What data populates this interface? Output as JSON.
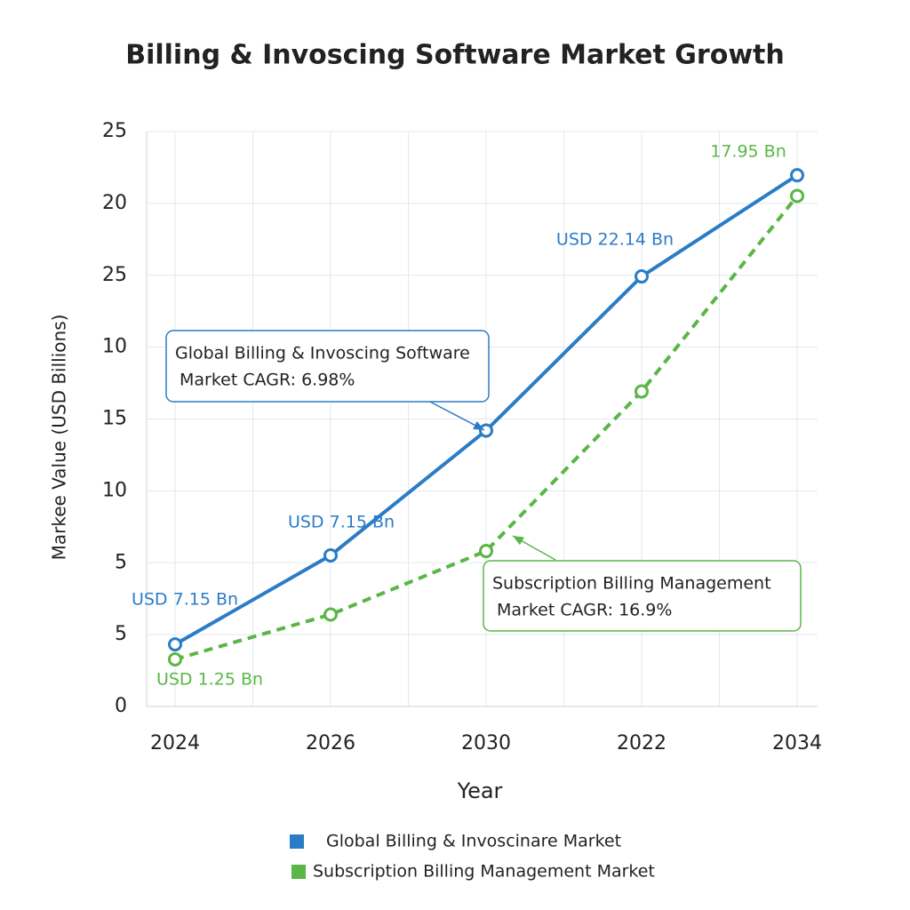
{
  "chart_data": {
    "type": "line",
    "title": "Billing & Invoscing Software Market Growth",
    "x_label": "Year",
    "y_label": "Markee Value (USD Billions)",
    "categories": [
      "2024",
      "2026",
      "2030",
      "2022",
      "2034"
    ],
    "series": [
      {
        "name": "Global Billing & Invoscinare Market",
        "color": "#2b7cc6",
        "dashed": false,
        "values": [
          2.7,
          6.57,
          12.0,
          18.7,
          23.1
        ]
      },
      {
        "name": "Subscription Billing Management Market",
        "color": "#5ab646",
        "dashed": true,
        "values": [
          2.05,
          4.0,
          6.76,
          13.7,
          22.2
        ]
      }
    ],
    "ylim": [
      0,
      25
    ],
    "yticks": [
      0,
      {
        "value": 3.125,
        "label": "5"
      },
      {
        "value": 6.25,
        "label": "5"
      },
      {
        "value": 9.375,
        "label": "10"
      },
      {
        "value": 12.5,
        "label": "15"
      },
      {
        "value": 15.625,
        "label": "10"
      },
      {
        "value": 18.75,
        "label": "25"
      },
      {
        "value": 21.875,
        "label": "20"
      },
      25
    ],
    "grid": true,
    "annotations": [
      {
        "text": "USD 7.15 Bn",
        "series": 0
      },
      {
        "text": "USD 7.15 Bn",
        "series": 0
      },
      {
        "text": "USD 22.14 Bn",
        "series": 0
      },
      {
        "text": "17.95 Bn",
        "series": 1
      },
      {
        "text": "USD 1.25 Bn",
        "series": 1
      }
    ],
    "callouts": [
      {
        "series": 0,
        "lines": [
          "Global Billing & Invoscing Software",
          "Market CAGR: 6.98%"
        ]
      },
      {
        "series": 1,
        "lines": [
          "Subscription Billing Management",
          "Market CAGR: 16.9%"
        ]
      }
    ]
  }
}
